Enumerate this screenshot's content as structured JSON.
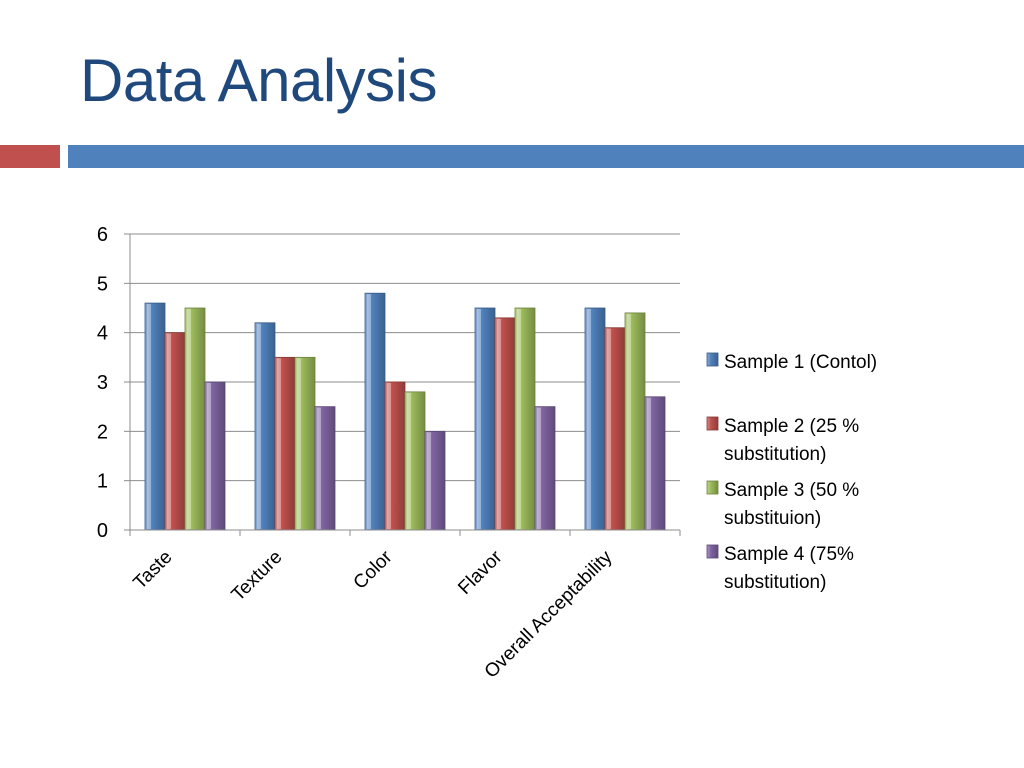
{
  "slide": {
    "title": "Data Analysis",
    "accent_red": "#C0504D",
    "accent_blue": "#4F81BD",
    "title_color": "#1F497D"
  },
  "chart_data": {
    "type": "bar",
    "title": "",
    "xlabel": "",
    "ylabel": "",
    "ylim": [
      0,
      6
    ],
    "yticks": [
      0,
      1,
      2,
      3,
      4,
      5,
      6
    ],
    "grid": true,
    "legend_position": "right",
    "categories": [
      "Taste",
      "Texture",
      "Color",
      "Flavor",
      "Overall Acceptability"
    ],
    "series": [
      {
        "name": "Sample 1 (Contol)",
        "legend_lines": [
          "Sample 1 (Contol)"
        ],
        "color": "#4F81BD",
        "values": [
          4.6,
          4.2,
          4.8,
          4.5,
          4.5
        ]
      },
      {
        "name": "Sample 2 (25 % substitution)",
        "legend_lines": [
          "Sample 2 (25 %",
          "substitution)"
        ],
        "color": "#C0504D",
        "values": [
          4.0,
          3.5,
          3.0,
          4.3,
          4.1
        ]
      },
      {
        "name": "Sample 3 (50 % substituion)",
        "legend_lines": [
          "Sample 3 (50 %",
          "substituion)"
        ],
        "color": "#9BBB59",
        "values": [
          4.5,
          3.5,
          2.8,
          4.5,
          4.4
        ]
      },
      {
        "name": "Sample 4 (75% substitution)",
        "legend_lines": [
          "Sample 4 (75%",
          "substitution)"
        ],
        "color": "#8064A2",
        "values": [
          3.0,
          2.5,
          2.0,
          2.5,
          2.7
        ]
      }
    ]
  }
}
